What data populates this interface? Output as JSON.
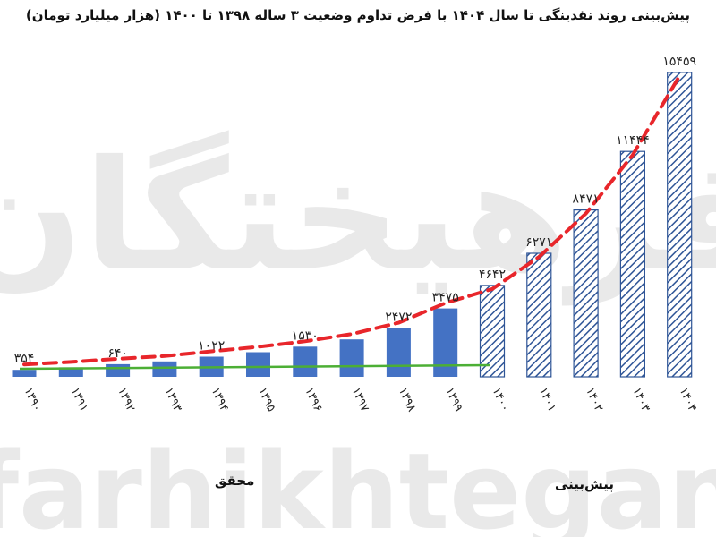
{
  "chart_data": {
    "type": "bar",
    "title": "پیش‌بینی روند نقدینگی تا سال ۱۴۰۴ با فرض تداوم وضعیت ۳ ساله ۱۳۹۸ تا ۱۴۰۰ (هزار میلیارد تومان)",
    "categories": [
      "۱۳۹۰",
      "۱۳۹۱",
      "۱۳۹۲",
      "۱۳۹۳",
      "۱۳۹۴",
      "۱۳۹۵",
      "۱۳۹۶",
      "۱۳۹۷",
      "۱۳۹۸",
      "۱۳۹۹",
      "۱۴۰۰",
      "۱۴۰۱",
      "۱۴۰۲",
      "۱۴۰۳",
      "۱۴۰۴"
    ],
    "values": [
      354,
      480,
      640,
      780,
      1022,
      1250,
      1530,
      1900,
      2472,
      3475,
      4642,
      6271,
      8471,
      11444,
      15459
    ],
    "value_labels": [
      "۳۵۴",
      "",
      "۶۴۰",
      "",
      "۱۰۲۲",
      "",
      "۱۵۳۰",
      "",
      "۲۴۷۲",
      "۳۴۷۵",
      "۴۶۴۲",
      "۶۲۷۱",
      "۸۴۷۱",
      "۱۱۴۴۴",
      "۱۵۴۵۹"
    ],
    "bar_style": [
      "solid",
      "solid",
      "solid",
      "solid",
      "solid",
      "solid",
      "solid",
      "solid",
      "solid",
      "solid",
      "hatched",
      "hatched",
      "hatched",
      "hatched",
      "hatched"
    ],
    "group_labels": {
      "actual": "محقق",
      "forecast": "پیش‌بینی"
    },
    "trend_lines": [
      {
        "style": "dashed",
        "color": "#e8262b"
      },
      {
        "style": "solid",
        "color": "#4caf35"
      }
    ],
    "colors": {
      "bar": "#4472c4",
      "bar_edge": "#2f5597"
    },
    "watermark": {
      "script": "فرهیختگان",
      "latin": "farhikhtegan"
    },
    "ylim": [
      0,
      16500
    ],
    "grid": false,
    "legend": "none"
  }
}
